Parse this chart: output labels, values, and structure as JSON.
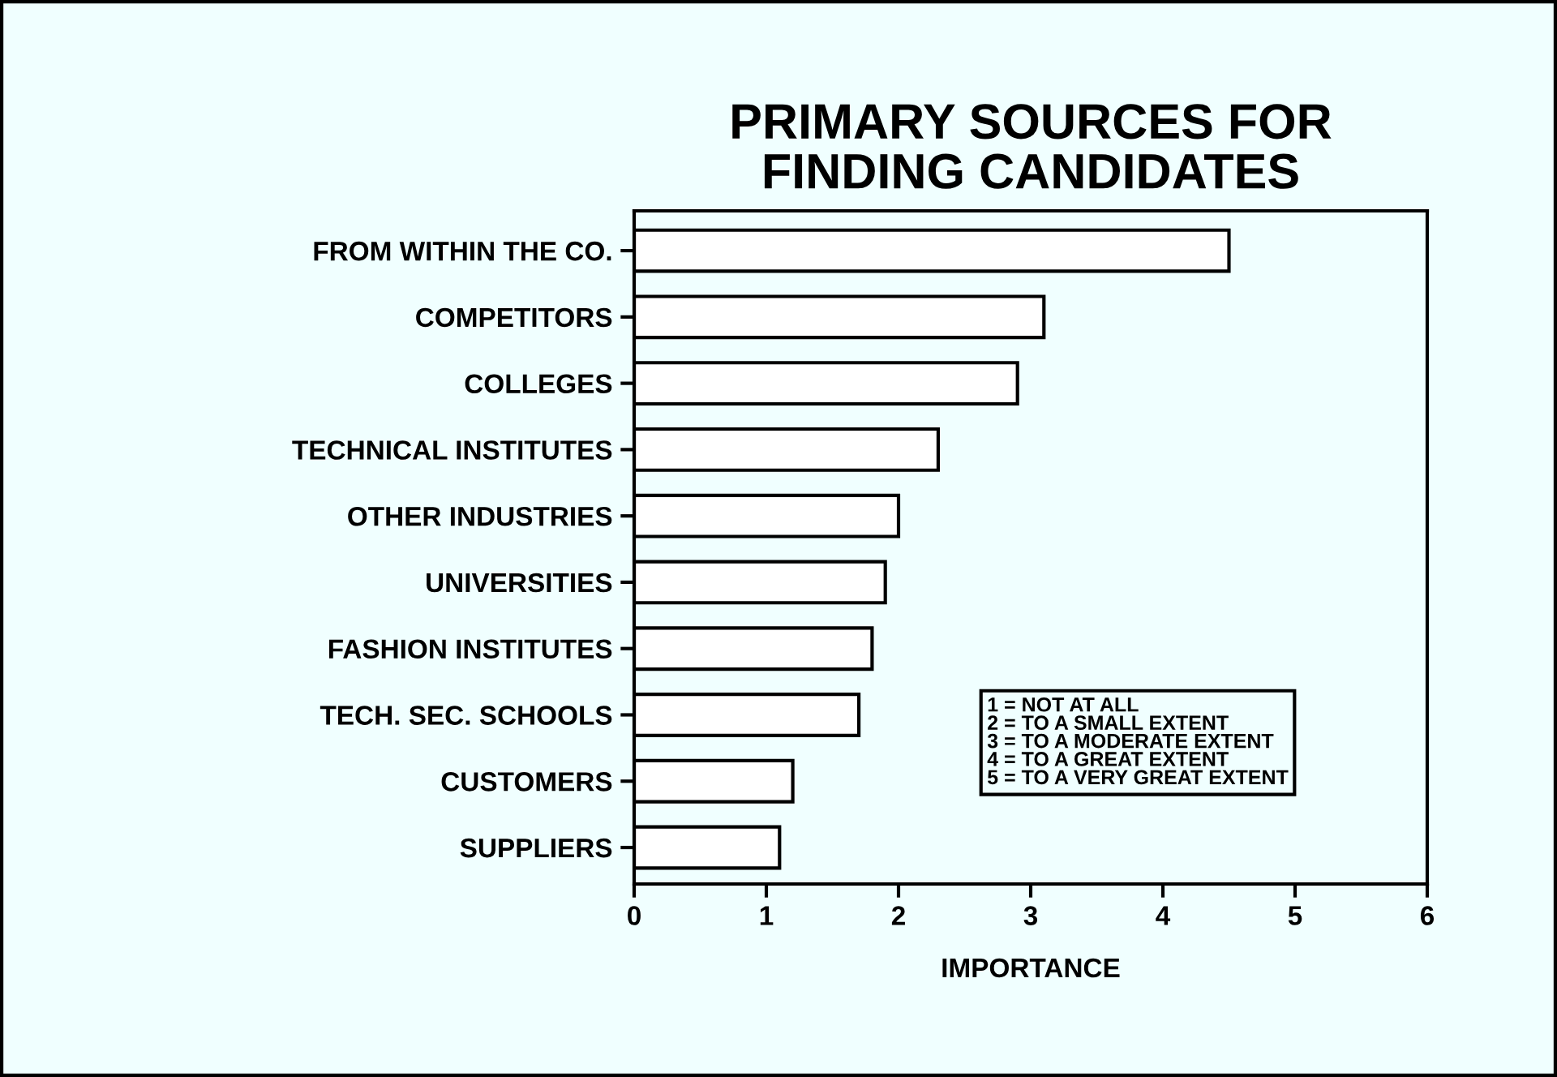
{
  "chart_data": {
    "type": "bar",
    "orientation": "horizontal",
    "title": "PRIMARY SOURCES FOR\nFINDING CANDIDATES",
    "categories": [
      "FROM WITHIN THE CO.",
      "COMPETITORS",
      "COLLEGES",
      "TECHNICAL INSTITUTES",
      "OTHER INDUSTRIES",
      "UNIVERSITIES",
      "FASHION INSTITUTES",
      "TECH. SEC. SCHOOLS",
      "CUSTOMERS",
      "SUPPLIERS"
    ],
    "values": [
      4.5,
      3.1,
      2.9,
      2.3,
      2.0,
      1.9,
      1.8,
      1.7,
      1.2,
      1.1
    ],
    "color": "#ffffff",
    "xlabel": "IMPORTANCE",
    "xlim": [
      0,
      6
    ],
    "xticks": [
      0,
      1,
      2,
      3,
      4,
      5,
      6
    ],
    "annotations": [
      "1 = NOT AT ALL\n2 = TO A SMALL EXTENT\n3 = TO A MODERATE EXTENT\n4 = TO A GREAT EXTENT\n5 = TO A VERY GREAT EXTENT"
    ],
    "grid": false,
    "legend": false
  }
}
